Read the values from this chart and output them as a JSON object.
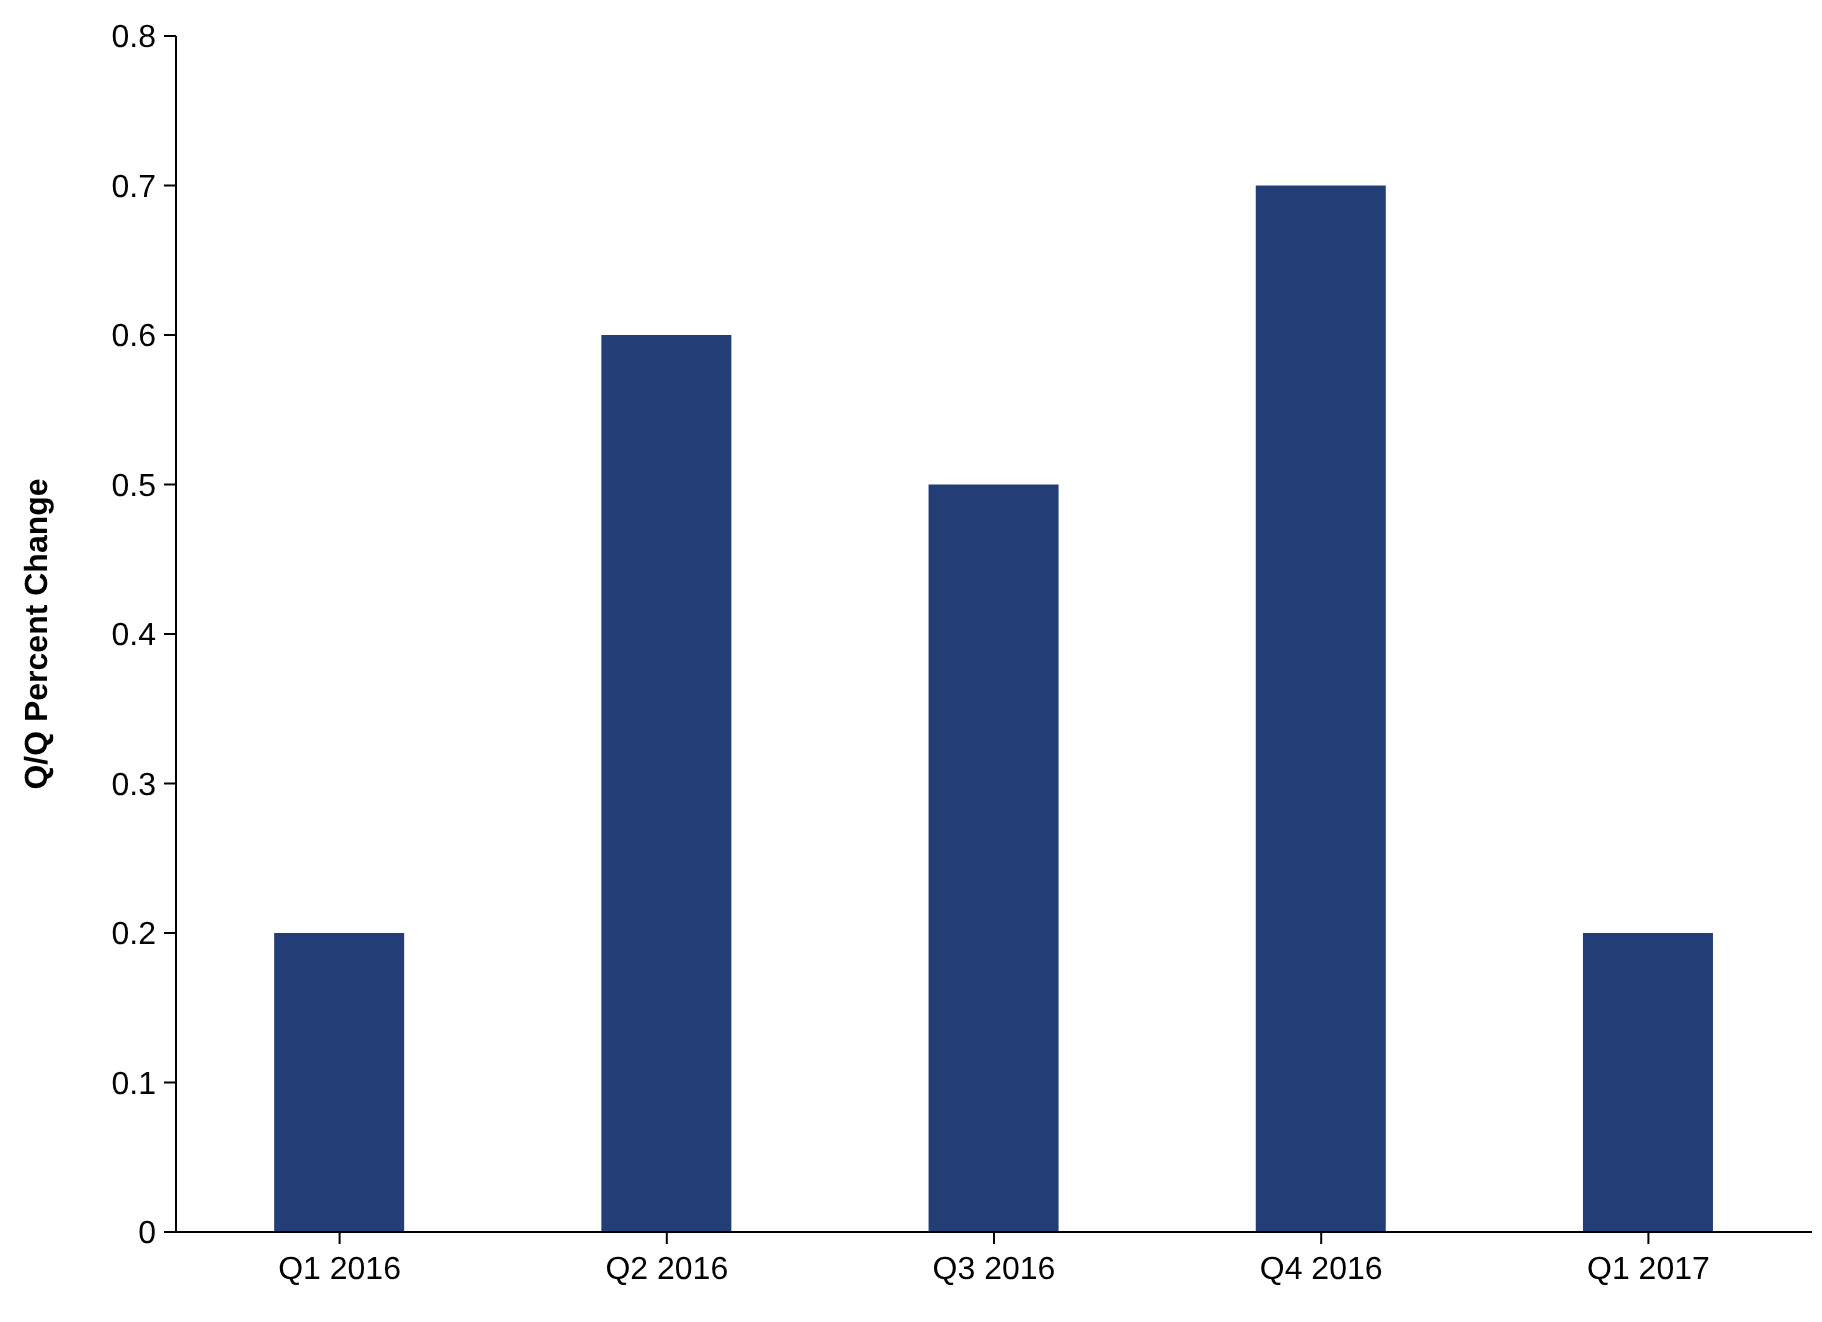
{
  "chart_data": {
    "type": "bar",
    "ylabel": "Q/Q Percent Change",
    "categories": [
      "Q1 2016",
      "Q2 2016",
      "Q3 2016",
      "Q4 2016",
      "Q1 2017"
    ],
    "values": [
      0.2,
      0.6,
      0.5,
      0.7,
      0.2
    ],
    "color": "#233d77",
    "ylim": [
      0,
      0.8
    ],
    "yticks": [
      0,
      0.1,
      0.2,
      0.3,
      0.4,
      0.5,
      0.6,
      0.7,
      0.8
    ],
    "grid": false,
    "legend": false
  }
}
